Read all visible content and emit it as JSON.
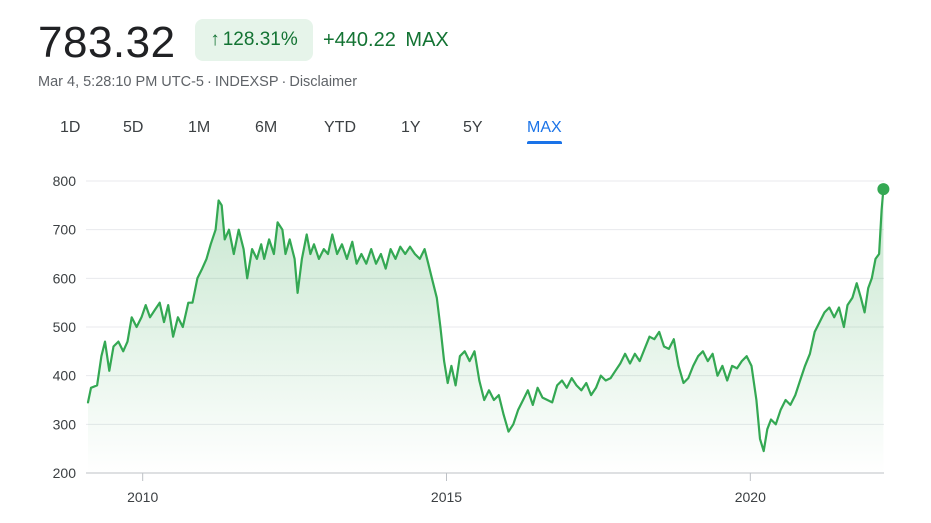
{
  "header": {
    "price": "783.32",
    "change_percent": "128.31%",
    "change_arrow_icon": "arrow-up-icon",
    "change_value": "+440.22",
    "change_period": "MAX",
    "positive_color": "#137333",
    "badge_bg": "#e6f4ea"
  },
  "meta": {
    "timestamp": "Mar 4, 5:28:10 PM UTC-5",
    "exchange": "INDEXSP",
    "disclaimer": "Disclaimer"
  },
  "tabs": [
    {
      "label": "1D",
      "active": false
    },
    {
      "label": "5D",
      "active": false
    },
    {
      "label": "1M",
      "active": false
    },
    {
      "label": "6M",
      "active": false
    },
    {
      "label": "YTD",
      "active": false
    },
    {
      "label": "1Y",
      "active": false
    },
    {
      "label": "5Y",
      "active": false
    },
    {
      "label": "MAX",
      "active": true
    }
  ],
  "chart_data": {
    "type": "area",
    "line_color": "#34a853",
    "grid": true,
    "ylim": [
      200,
      800
    ],
    "yticks": [
      800,
      700,
      600,
      500,
      400,
      300,
      200
    ],
    "xlim": [
      2009.1,
      2022.2
    ],
    "xticks": [
      {
        "value": 2010,
        "label": "2010"
      },
      {
        "value": 2015,
        "label": "2015"
      },
      {
        "value": 2020,
        "label": "2020"
      }
    ],
    "series": [
      {
        "points": [
          [
            2009.1,
            345
          ],
          [
            2009.15,
            375
          ],
          [
            2009.25,
            380
          ],
          [
            2009.32,
            440
          ],
          [
            2009.38,
            470
          ],
          [
            2009.45,
            410
          ],
          [
            2009.52,
            460
          ],
          [
            2009.6,
            470
          ],
          [
            2009.68,
            450
          ],
          [
            2009.75,
            470
          ],
          [
            2009.82,
            520
          ],
          [
            2009.9,
            500
          ],
          [
            2009.98,
            520
          ],
          [
            2010.05,
            545
          ],
          [
            2010.12,
            520
          ],
          [
            2010.2,
            535
          ],
          [
            2010.28,
            550
          ],
          [
            2010.35,
            510
          ],
          [
            2010.42,
            545
          ],
          [
            2010.5,
            480
          ],
          [
            2010.58,
            520
          ],
          [
            2010.66,
            500
          ],
          [
            2010.75,
            550
          ],
          [
            2010.82,
            550
          ],
          [
            2010.9,
            600
          ],
          [
            2010.98,
            620
          ],
          [
            2011.05,
            640
          ],
          [
            2011.12,
            670
          ],
          [
            2011.2,
            700
          ],
          [
            2011.25,
            760
          ],
          [
            2011.3,
            750
          ],
          [
            2011.35,
            680
          ],
          [
            2011.42,
            700
          ],
          [
            2011.5,
            650
          ],
          [
            2011.58,
            700
          ],
          [
            2011.66,
            660
          ],
          [
            2011.72,
            600
          ],
          [
            2011.8,
            660
          ],
          [
            2011.88,
            640
          ],
          [
            2011.95,
            670
          ],
          [
            2012.0,
            640
          ],
          [
            2012.08,
            680
          ],
          [
            2012.16,
            650
          ],
          [
            2012.22,
            715
          ],
          [
            2012.3,
            700
          ],
          [
            2012.35,
            650
          ],
          [
            2012.42,
            680
          ],
          [
            2012.5,
            640
          ],
          [
            2012.55,
            570
          ],
          [
            2012.62,
            640
          ],
          [
            2012.7,
            690
          ],
          [
            2012.76,
            650
          ],
          [
            2012.82,
            670
          ],
          [
            2012.9,
            640
          ],
          [
            2012.98,
            660
          ],
          [
            2013.05,
            650
          ],
          [
            2013.12,
            690
          ],
          [
            2013.2,
            650
          ],
          [
            2013.28,
            670
          ],
          [
            2013.36,
            640
          ],
          [
            2013.45,
            675
          ],
          [
            2013.52,
            630
          ],
          [
            2013.6,
            650
          ],
          [
            2013.68,
            630
          ],
          [
            2013.76,
            660
          ],
          [
            2013.84,
            630
          ],
          [
            2013.92,
            650
          ],
          [
            2014.0,
            620
          ],
          [
            2014.08,
            660
          ],
          [
            2014.16,
            640
          ],
          [
            2014.24,
            665
          ],
          [
            2014.32,
            650
          ],
          [
            2014.4,
            665
          ],
          [
            2014.48,
            650
          ],
          [
            2014.56,
            640
          ],
          [
            2014.64,
            660
          ],
          [
            2014.7,
            630
          ],
          [
            2014.76,
            600
          ],
          [
            2014.84,
            560
          ],
          [
            2014.9,
            500
          ],
          [
            2014.96,
            430
          ],
          [
            2015.02,
            385
          ],
          [
            2015.08,
            420
          ],
          [
            2015.15,
            380
          ],
          [
            2015.22,
            440
          ],
          [
            2015.3,
            450
          ],
          [
            2015.38,
            430
          ],
          [
            2015.46,
            450
          ],
          [
            2015.54,
            390
          ],
          [
            2015.62,
            350
          ],
          [
            2015.7,
            370
          ],
          [
            2015.78,
            350
          ],
          [
            2015.86,
            360
          ],
          [
            2015.94,
            320
          ],
          [
            2016.02,
            285
          ],
          [
            2016.1,
            300
          ],
          [
            2016.18,
            330
          ],
          [
            2016.26,
            350
          ],
          [
            2016.34,
            370
          ],
          [
            2016.42,
            340
          ],
          [
            2016.5,
            375
          ],
          [
            2016.58,
            355
          ],
          [
            2016.66,
            350
          ],
          [
            2016.74,
            345
          ],
          [
            2016.82,
            380
          ],
          [
            2016.9,
            390
          ],
          [
            2016.98,
            375
          ],
          [
            2017.06,
            395
          ],
          [
            2017.14,
            380
          ],
          [
            2017.22,
            370
          ],
          [
            2017.3,
            385
          ],
          [
            2017.38,
            360
          ],
          [
            2017.46,
            375
          ],
          [
            2017.54,
            400
          ],
          [
            2017.62,
            390
          ],
          [
            2017.7,
            395
          ],
          [
            2017.78,
            410
          ],
          [
            2017.86,
            425
          ],
          [
            2017.94,
            445
          ],
          [
            2018.02,
            425
          ],
          [
            2018.1,
            445
          ],
          [
            2018.18,
            430
          ],
          [
            2018.26,
            455
          ],
          [
            2018.34,
            480
          ],
          [
            2018.42,
            475
          ],
          [
            2018.5,
            490
          ],
          [
            2018.58,
            460
          ],
          [
            2018.66,
            455
          ],
          [
            2018.74,
            475
          ],
          [
            2018.82,
            420
          ],
          [
            2018.9,
            385
          ],
          [
            2018.98,
            395
          ],
          [
            2019.06,
            420
          ],
          [
            2019.14,
            440
          ],
          [
            2019.22,
            450
          ],
          [
            2019.3,
            430
          ],
          [
            2019.38,
            445
          ],
          [
            2019.46,
            400
          ],
          [
            2019.54,
            420
          ],
          [
            2019.62,
            390
          ],
          [
            2019.7,
            420
          ],
          [
            2019.78,
            415
          ],
          [
            2019.86,
            430
          ],
          [
            2019.94,
            440
          ],
          [
            2020.02,
            420
          ],
          [
            2020.1,
            350
          ],
          [
            2020.16,
            270
          ],
          [
            2020.22,
            245
          ],
          [
            2020.28,
            290
          ],
          [
            2020.34,
            310
          ],
          [
            2020.42,
            300
          ],
          [
            2020.5,
            330
          ],
          [
            2020.58,
            350
          ],
          [
            2020.66,
            340
          ],
          [
            2020.74,
            360
          ],
          [
            2020.82,
            390
          ],
          [
            2020.9,
            420
          ],
          [
            2020.98,
            445
          ],
          [
            2021.06,
            490
          ],
          [
            2021.14,
            510
          ],
          [
            2021.22,
            530
          ],
          [
            2021.3,
            540
          ],
          [
            2021.38,
            520
          ],
          [
            2021.46,
            540
          ],
          [
            2021.54,
            500
          ],
          [
            2021.6,
            545
          ],
          [
            2021.68,
            560
          ],
          [
            2021.75,
            590
          ],
          [
            2021.82,
            560
          ],
          [
            2021.88,
            530
          ],
          [
            2021.94,
            580
          ],
          [
            2022.0,
            600
          ],
          [
            2022.06,
            640
          ],
          [
            2022.12,
            650
          ],
          [
            2022.16,
            740
          ],
          [
            2022.19,
            783.32
          ]
        ]
      }
    ]
  }
}
